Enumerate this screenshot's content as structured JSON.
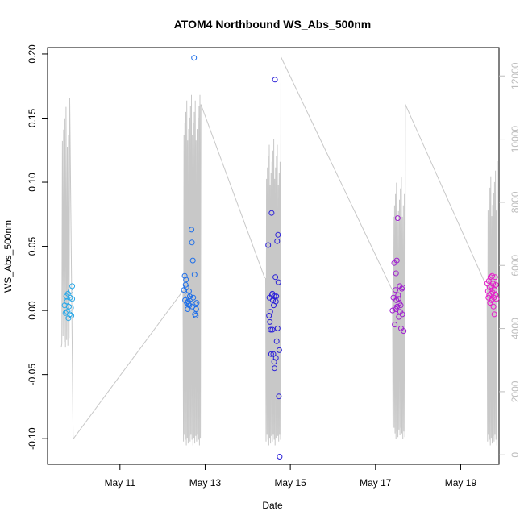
{
  "chart_data": {
    "type": "scatter",
    "title": "ATOM4 Northbound WS_Abs_500nm",
    "xlabel": "Date",
    "ylabel": "WS_Abs_500nm",
    "x_ticks": [
      "May 11",
      "May 13",
      "May 15",
      "May 17",
      "May 19"
    ],
    "y_ticks": [
      "-0.10",
      "-0.05",
      "0.00",
      "0.05",
      "0.10",
      "0.15",
      "0.20"
    ],
    "y2_ticks": [
      "0",
      "2000",
      "4000",
      "6000",
      "8000",
      "10000",
      "12000"
    ],
    "xlim": [
      9.3,
      19.9
    ],
    "ylim": [
      -0.12,
      0.205
    ],
    "y2lim": [
      -300,
      12900
    ],
    "grid": false,
    "colors": {
      "line": "#c8c8c8",
      "axis": "#000000",
      "right_axis": "#bdbdbd",
      "groups": [
        "#29a8e8",
        "#1f6fe8",
        "#2a1fd8",
        "#a020d0",
        "#e61acb"
      ]
    },
    "points": [
      {
        "g": 0,
        "x": 9.7,
        "y": 0.004
      },
      {
        "g": 0,
        "x": 9.72,
        "y": -0.002
      },
      {
        "g": 0,
        "x": 9.74,
        "y": 0.011
      },
      {
        "g": 0,
        "x": 9.75,
        "y": 0.007
      },
      {
        "g": 0,
        "x": 9.76,
        "y": -0.001
      },
      {
        "g": 0,
        "x": 9.78,
        "y": 0.013
      },
      {
        "g": 0,
        "x": 9.79,
        "y": -0.006
      },
      {
        "g": 0,
        "x": 9.8,
        "y": 0.003
      },
      {
        "g": 0,
        "x": 9.82,
        "y": -0.003
      },
      {
        "g": 0,
        "x": 9.83,
        "y": 0.01
      },
      {
        "g": 0,
        "x": 9.84,
        "y": 0.015
      },
      {
        "g": 0,
        "x": 9.85,
        "y": 0.002
      },
      {
        "g": 0,
        "x": 9.86,
        "y": -0.004
      },
      {
        "g": 0,
        "x": 9.88,
        "y": 0.019
      },
      {
        "g": 0,
        "x": 9.88,
        "y": 0.009
      },
      {
        "g": 1,
        "x": 12.5,
        "y": 0.016
      },
      {
        "g": 1,
        "x": 12.52,
        "y": 0.027
      },
      {
        "g": 1,
        "x": 12.53,
        "y": 0.008
      },
      {
        "g": 1,
        "x": 12.55,
        "y": 0.024
      },
      {
        "g": 1,
        "x": 12.56,
        "y": 0.018
      },
      {
        "g": 1,
        "x": 12.57,
        "y": 0.006
      },
      {
        "g": 1,
        "x": 12.58,
        "y": 0.012
      },
      {
        "g": 1,
        "x": 12.59,
        "y": 0.001
      },
      {
        "g": 1,
        "x": 12.6,
        "y": 0.007
      },
      {
        "g": 1,
        "x": 12.62,
        "y": 0.015
      },
      {
        "g": 1,
        "x": 12.63,
        "y": 0.004
      },
      {
        "g": 1,
        "x": 12.64,
        "y": 0.011
      },
      {
        "g": 1,
        "x": 12.66,
        "y": 0.009
      },
      {
        "g": 1,
        "x": 12.68,
        "y": 0.063
      },
      {
        "g": 1,
        "x": 12.69,
        "y": 0.053
      },
      {
        "g": 1,
        "x": 12.7,
        "y": 0.003
      },
      {
        "g": 1,
        "x": 12.71,
        "y": 0.039
      },
      {
        "g": 1,
        "x": 12.72,
        "y": 0.01
      },
      {
        "g": 1,
        "x": 12.74,
        "y": 0.197
      },
      {
        "g": 1,
        "x": 12.75,
        "y": 0.028
      },
      {
        "g": 1,
        "x": 12.76,
        "y": -0.003
      },
      {
        "g": 1,
        "x": 12.77,
        "y": 0.005
      },
      {
        "g": 1,
        "x": 12.78,
        "y": -0.004
      },
      {
        "g": 1,
        "x": 12.79,
        "y": 0.001
      },
      {
        "g": 1,
        "x": 12.8,
        "y": 0.006
      },
      {
        "g": 1,
        "x": 12.61,
        "y": 0.005
      },
      {
        "g": 1,
        "x": 12.54,
        "y": 0.02
      },
      {
        "g": 2,
        "x": 14.48,
        "y": 0.051
      },
      {
        "g": 2,
        "x": 14.5,
        "y": -0.004
      },
      {
        "g": 2,
        "x": 14.51,
        "y": 0.01
      },
      {
        "g": 2,
        "x": 14.52,
        "y": -0.009
      },
      {
        "g": 2,
        "x": 14.53,
        "y": -0.001
      },
      {
        "g": 2,
        "x": 14.54,
        "y": -0.015
      },
      {
        "g": 2,
        "x": 14.55,
        "y": -0.034
      },
      {
        "g": 2,
        "x": 14.56,
        "y": 0.076
      },
      {
        "g": 2,
        "x": 14.57,
        "y": 0.012
      },
      {
        "g": 2,
        "x": 14.58,
        "y": -0.015
      },
      {
        "g": 2,
        "x": 14.59,
        "y": 0.008
      },
      {
        "g": 2,
        "x": 14.6,
        "y": -0.034
      },
      {
        "g": 2,
        "x": 14.61,
        "y": 0.004
      },
      {
        "g": 2,
        "x": 14.62,
        "y": 0.011
      },
      {
        "g": 2,
        "x": 14.63,
        "y": -0.045
      },
      {
        "g": 2,
        "x": 14.64,
        "y": 0.18
      },
      {
        "g": 2,
        "x": 14.65,
        "y": 0.026
      },
      {
        "g": 2,
        "x": 14.66,
        "y": -0.037
      },
      {
        "g": 2,
        "x": 14.67,
        "y": 0.011
      },
      {
        "g": 2,
        "x": 14.68,
        "y": -0.024
      },
      {
        "g": 2,
        "x": 14.69,
        "y": 0.054
      },
      {
        "g": 2,
        "x": 14.7,
        "y": -0.014
      },
      {
        "g": 2,
        "x": 14.71,
        "y": 0.059
      },
      {
        "g": 2,
        "x": 14.72,
        "y": 0.022
      },
      {
        "g": 2,
        "x": 14.73,
        "y": -0.067
      },
      {
        "g": 2,
        "x": 14.74,
        "y": -0.031
      },
      {
        "g": 2,
        "x": 14.75,
        "y": -0.114
      },
      {
        "g": 2,
        "x": 14.62,
        "y": -0.04
      },
      {
        "g": 2,
        "x": 14.58,
        "y": 0.013
      },
      {
        "g": 2,
        "x": 14.66,
        "y": 0.007
      },
      {
        "g": 3,
        "x": 17.4,
        "y": 0.0
      },
      {
        "g": 3,
        "x": 17.42,
        "y": 0.01
      },
      {
        "g": 3,
        "x": 17.44,
        "y": 0.037
      },
      {
        "g": 3,
        "x": 17.45,
        "y": -0.011
      },
      {
        "g": 3,
        "x": 17.46,
        "y": 0.002
      },
      {
        "g": 3,
        "x": 17.47,
        "y": 0.016
      },
      {
        "g": 3,
        "x": 17.48,
        "y": 0.029
      },
      {
        "g": 3,
        "x": 17.49,
        "y": 0.008
      },
      {
        "g": 3,
        "x": 17.5,
        "y": 0.039
      },
      {
        "g": 3,
        "x": 17.51,
        "y": 0.003
      },
      {
        "g": 3,
        "x": 17.52,
        "y": 0.072
      },
      {
        "g": 3,
        "x": 17.53,
        "y": 0.012
      },
      {
        "g": 3,
        "x": 17.54,
        "y": 0.009
      },
      {
        "g": 3,
        "x": 17.55,
        "y": -0.005
      },
      {
        "g": 3,
        "x": 17.56,
        "y": 0.006
      },
      {
        "g": 3,
        "x": 17.57,
        "y": 0.019
      },
      {
        "g": 3,
        "x": 17.58,
        "y": -0.001
      },
      {
        "g": 3,
        "x": 17.59,
        "y": 0.004
      },
      {
        "g": 3,
        "x": 17.6,
        "y": -0.014
      },
      {
        "g": 3,
        "x": 17.62,
        "y": 0.017
      },
      {
        "g": 3,
        "x": 17.63,
        "y": -0.003
      },
      {
        "g": 3,
        "x": 17.64,
        "y": 0.018
      },
      {
        "g": 3,
        "x": 17.66,
        "y": -0.016
      },
      {
        "g": 3,
        "x": 17.48,
        "y": 0.001
      },
      {
        "g": 4,
        "x": 19.62,
        "y": 0.021
      },
      {
        "g": 4,
        "x": 19.64,
        "y": 0.015
      },
      {
        "g": 4,
        "x": 19.65,
        "y": 0.01
      },
      {
        "g": 4,
        "x": 19.66,
        "y": 0.023
      },
      {
        "g": 4,
        "x": 19.67,
        "y": 0.012
      },
      {
        "g": 4,
        "x": 19.68,
        "y": 0.018
      },
      {
        "g": 4,
        "x": 19.69,
        "y": 0.006
      },
      {
        "g": 4,
        "x": 19.7,
        "y": 0.026
      },
      {
        "g": 4,
        "x": 19.71,
        "y": 0.013
      },
      {
        "g": 4,
        "x": 19.72,
        "y": 0.019
      },
      {
        "g": 4,
        "x": 19.73,
        "y": 0.008
      },
      {
        "g": 4,
        "x": 19.74,
        "y": 0.027
      },
      {
        "g": 4,
        "x": 19.75,
        "y": 0.014
      },
      {
        "g": 4,
        "x": 19.76,
        "y": 0.021
      },
      {
        "g": 4,
        "x": 19.77,
        "y": 0.003
      },
      {
        "g": 4,
        "x": 19.78,
        "y": 0.01
      },
      {
        "g": 4,
        "x": 19.79,
        "y": -0.003
      },
      {
        "g": 4,
        "x": 19.8,
        "y": 0.016
      },
      {
        "g": 4,
        "x": 19.81,
        "y": 0.026
      },
      {
        "g": 4,
        "x": 19.82,
        "y": 0.012
      },
      {
        "g": 4,
        "x": 19.83,
        "y": 0.02
      },
      {
        "g": 4,
        "x": 19.84,
        "y": 0.009
      }
    ],
    "line_series": {
      "name": "",
      "axis": "right",
      "segments": [
        {
          "x0": 9.62,
          "x1": 9.82,
          "lo": 3400,
          "hi": 11200,
          "osc": 6,
          "start": 3400,
          "end": 11300
        },
        {
          "x0": 12.48,
          "x1": 12.9,
          "lo": 300,
          "hi": 11400,
          "osc": 18,
          "start": 5200,
          "end": 11100
        },
        {
          "x0": 14.42,
          "x1": 14.78,
          "lo": 300,
          "hi": 10000,
          "osc": 16,
          "start": 5600,
          "end": 12600
        },
        {
          "x0": 17.4,
          "x1": 17.7,
          "lo": 500,
          "hi": 8800,
          "osc": 12,
          "start": 5200,
          "end": 11100
        },
        {
          "x0": 19.62,
          "x1": 19.86,
          "lo": 300,
          "hi": 9000,
          "osc": 10,
          "start": 5300,
          "end": 9300
        }
      ],
      "connectors": [
        {
          "x0": 9.82,
          "y0": 11300,
          "x1": 9.9,
          "y1": 500
        },
        {
          "x0": 9.9,
          "y0": 500,
          "x1": 12.48,
          "y1": 5200
        },
        {
          "x0": 12.9,
          "y0": 11100,
          "x1": 14.4,
          "y1": 5600
        },
        {
          "x0": 14.78,
          "y0": 12600,
          "x1": 17.4,
          "y1": 5200
        },
        {
          "x0": 17.7,
          "y0": 11100,
          "x1": 19.62,
          "y1": 5300
        }
      ]
    }
  }
}
